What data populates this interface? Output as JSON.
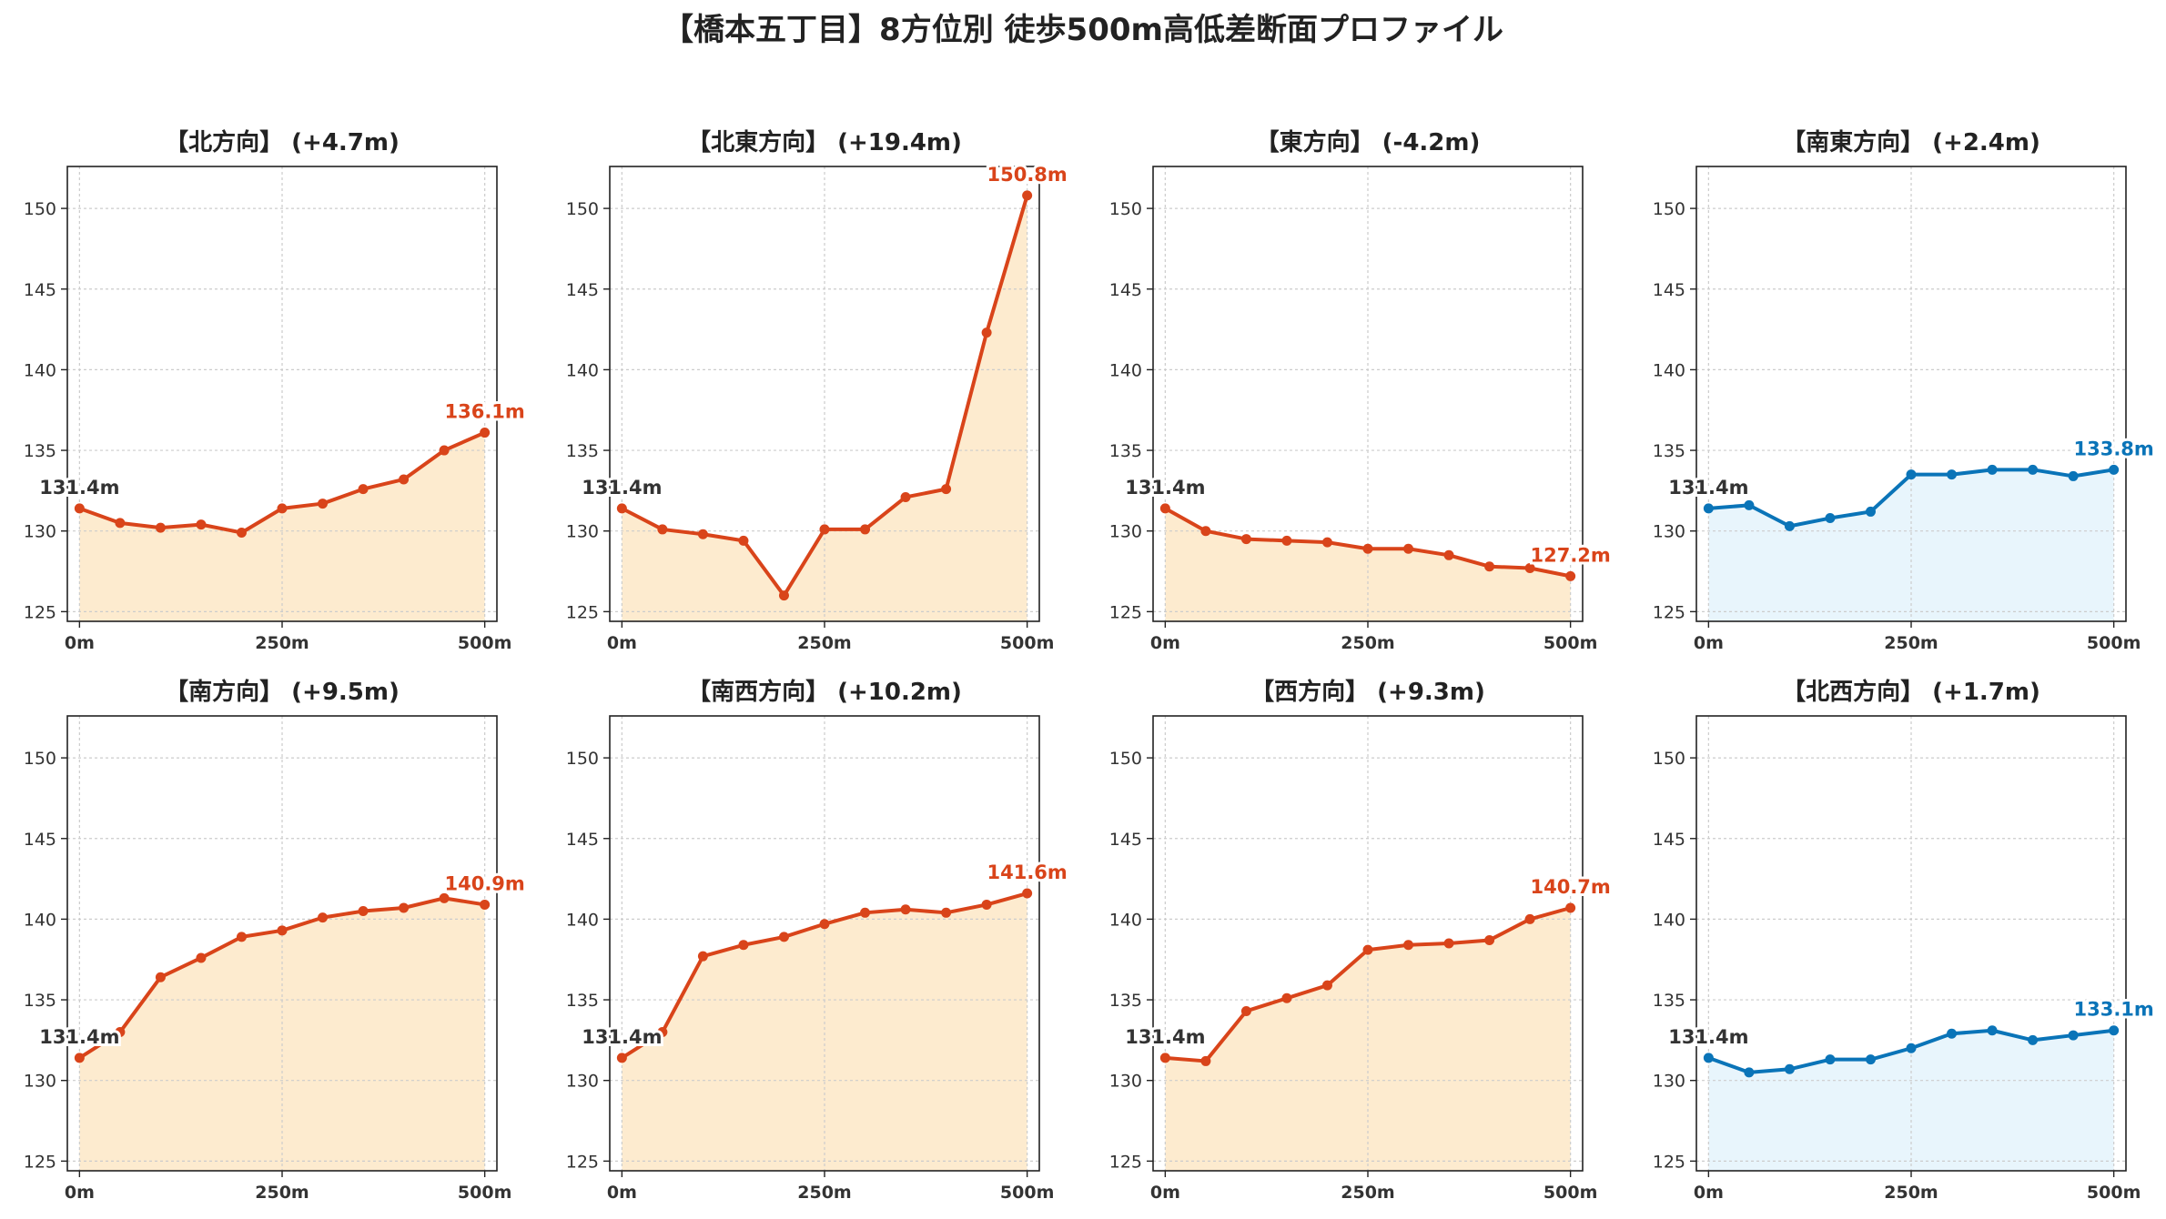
{
  "title": "【橋本五丁目】8方位別 徒歩500m高低差断面プロファイル",
  "colors": {
    "up": "#d9441a",
    "up_fill": "#fdebcf",
    "down": "#0a74b8",
    "down_fill": "#e8f5fc",
    "grid": "#cccccc",
    "start_label": "#333333"
  },
  "chart_data": [
    {
      "type": "area",
      "title": "【北方向】 (+4.7m)",
      "color": "up",
      "x": [
        0,
        50,
        100,
        150,
        200,
        250,
        300,
        350,
        400,
        450,
        500
      ],
      "y": [
        131.4,
        130.5,
        130.2,
        130.4,
        129.9,
        131.4,
        131.7,
        132.6,
        133.2,
        135.0,
        136.1
      ],
      "start_label": "131.4m",
      "end_label": "136.1m",
      "xticks": [
        0,
        250,
        500
      ],
      "xtick_labels": [
        "0m",
        "250m",
        "500m"
      ],
      "yticks": [
        125,
        130,
        135,
        140,
        145,
        150
      ],
      "ylim": [
        124.4,
        152.6
      ],
      "xlim": [
        -15,
        515
      ],
      "grid": true
    },
    {
      "type": "area",
      "title": "【北東方向】 (+19.4m)",
      "color": "up",
      "x": [
        0,
        50,
        100,
        150,
        200,
        250,
        300,
        350,
        400,
        450,
        500
      ],
      "y": [
        131.4,
        130.1,
        129.8,
        129.4,
        126.0,
        130.1,
        130.1,
        132.1,
        132.6,
        142.3,
        150.8
      ],
      "start_label": "131.4m",
      "end_label": "150.8m",
      "xticks": [
        0,
        250,
        500
      ],
      "xtick_labels": [
        "0m",
        "250m",
        "500m"
      ],
      "yticks": [
        125,
        130,
        135,
        140,
        145,
        150
      ],
      "ylim": [
        124.4,
        152.6
      ],
      "xlim": [
        -15,
        515
      ],
      "grid": true
    },
    {
      "type": "area",
      "title": "【東方向】 (-4.2m)",
      "color": "up",
      "x": [
        0,
        50,
        100,
        150,
        200,
        250,
        300,
        350,
        400,
        450,
        500
      ],
      "y": [
        131.4,
        130.0,
        129.5,
        129.4,
        129.3,
        128.9,
        128.9,
        128.5,
        127.8,
        127.7,
        127.2
      ],
      "start_label": "131.4m",
      "end_label": "127.2m",
      "xticks": [
        0,
        250,
        500
      ],
      "xtick_labels": [
        "0m",
        "250m",
        "500m"
      ],
      "yticks": [
        125,
        130,
        135,
        140,
        145,
        150
      ],
      "ylim": [
        124.4,
        152.6
      ],
      "xlim": [
        -15,
        515
      ],
      "grid": true
    },
    {
      "type": "area",
      "title": "【南東方向】 (+2.4m)",
      "color": "down",
      "x": [
        0,
        50,
        100,
        150,
        200,
        250,
        300,
        350,
        400,
        450,
        500
      ],
      "y": [
        131.4,
        131.6,
        130.3,
        130.8,
        131.2,
        133.5,
        133.5,
        133.8,
        133.8,
        133.4,
        133.8
      ],
      "start_label": "131.4m",
      "end_label": "133.8m",
      "xticks": [
        0,
        250,
        500
      ],
      "xtick_labels": [
        "0m",
        "250m",
        "500m"
      ],
      "yticks": [
        125,
        130,
        135,
        140,
        145,
        150
      ],
      "ylim": [
        124.4,
        152.6
      ],
      "xlim": [
        -15,
        515
      ],
      "grid": true
    },
    {
      "type": "area",
      "title": "【南方向】 (+9.5m)",
      "color": "up",
      "x": [
        0,
        50,
        100,
        150,
        200,
        250,
        300,
        350,
        400,
        450,
        500
      ],
      "y": [
        131.4,
        133.0,
        136.4,
        137.6,
        138.9,
        139.3,
        140.1,
        140.5,
        140.7,
        141.3,
        140.9
      ],
      "start_label": "131.4m",
      "end_label": "140.9m",
      "xticks": [
        0,
        250,
        500
      ],
      "xtick_labels": [
        "0m",
        "250m",
        "500m"
      ],
      "yticks": [
        125,
        130,
        135,
        140,
        145,
        150
      ],
      "ylim": [
        124.4,
        152.6
      ],
      "xlim": [
        -15,
        515
      ],
      "grid": true
    },
    {
      "type": "area",
      "title": "【南西方向】 (+10.2m)",
      "color": "up",
      "x": [
        0,
        50,
        100,
        150,
        200,
        250,
        300,
        350,
        400,
        450,
        500
      ],
      "y": [
        131.4,
        133.0,
        137.7,
        138.4,
        138.9,
        139.7,
        140.4,
        140.6,
        140.4,
        140.9,
        141.6
      ],
      "start_label": "131.4m",
      "end_label": "141.6m",
      "xticks": [
        0,
        250,
        500
      ],
      "xtick_labels": [
        "0m",
        "250m",
        "500m"
      ],
      "yticks": [
        125,
        130,
        135,
        140,
        145,
        150
      ],
      "ylim": [
        124.4,
        152.6
      ],
      "xlim": [
        -15,
        515
      ],
      "grid": true
    },
    {
      "type": "area",
      "title": "【西方向】 (+9.3m)",
      "color": "up",
      "x": [
        0,
        50,
        100,
        150,
        200,
        250,
        300,
        350,
        400,
        450,
        500
      ],
      "y": [
        131.4,
        131.2,
        134.3,
        135.1,
        135.9,
        138.1,
        138.4,
        138.5,
        138.7,
        140.0,
        140.7
      ],
      "start_label": "131.4m",
      "end_label": "140.7m",
      "xticks": [
        0,
        250,
        500
      ],
      "xtick_labels": [
        "0m",
        "250m",
        "500m"
      ],
      "yticks": [
        125,
        130,
        135,
        140,
        145,
        150
      ],
      "ylim": [
        124.4,
        152.6
      ],
      "xlim": [
        -15,
        515
      ],
      "grid": true
    },
    {
      "type": "area",
      "title": "【北西方向】 (+1.7m)",
      "color": "down",
      "x": [
        0,
        50,
        100,
        150,
        200,
        250,
        300,
        350,
        400,
        450,
        500
      ],
      "y": [
        131.4,
        130.5,
        130.7,
        131.3,
        131.3,
        132.0,
        132.9,
        133.1,
        132.5,
        132.8,
        133.1
      ],
      "start_label": "131.4m",
      "end_label": "133.1m",
      "xticks": [
        0,
        250,
        500
      ],
      "xtick_labels": [
        "0m",
        "250m",
        "500m"
      ],
      "yticks": [
        125,
        130,
        135,
        140,
        145,
        150
      ],
      "ylim": [
        124.4,
        152.6
      ],
      "xlim": [
        -15,
        515
      ],
      "grid": true
    }
  ]
}
